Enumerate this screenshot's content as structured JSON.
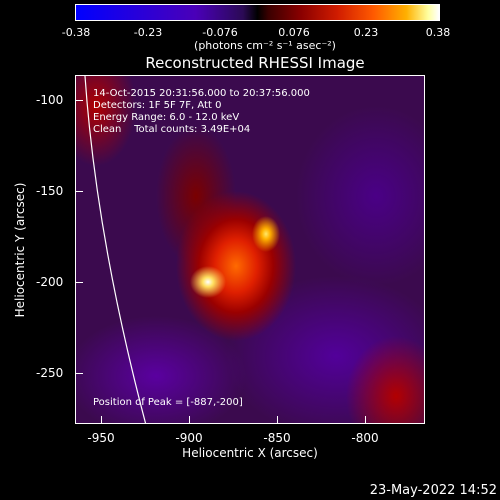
{
  "colorbar": {
    "ticks": [
      "-0.38",
      "-0.23",
      "-0.076",
      "0.076",
      "0.23",
      "0.38"
    ],
    "units": "(photons cm⁻² s⁻¹ asec⁻²)"
  },
  "title": "Reconstructed RHESSI Image",
  "info": {
    "time": "14-Oct-2015 20:31:56.000 to 20:37:56.000",
    "detectors": "Detectors: 1F 5F 7F, Att 0",
    "energy": "Energy Range: 6.0 - 12.0 keV",
    "clean": "Clean    Total counts: 3.49E+04"
  },
  "peak": "Position of Peak = [-887,-200]",
  "axes": {
    "xlabel": "Heliocentric X (arcsec)",
    "ylabel": "Heliocentric Y (arcsec)",
    "xticks": [
      "-950",
      "-900",
      "-850",
      "-800"
    ],
    "yticks": [
      "-100",
      "-150",
      "-200",
      "-250"
    ],
    "xlim": [
      -965,
      -825
    ],
    "ylim": [
      -275,
      -85
    ]
  },
  "date": "23-May-2022 14:52",
  "colors": {
    "background": "#000000",
    "foreground": "#ffffff"
  }
}
